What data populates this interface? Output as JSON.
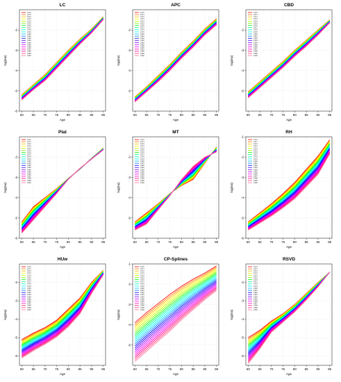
{
  "chart_data": {
    "type": "line",
    "series_names": [
      "1970",
      "1971",
      "1972",
      "1973",
      "1974",
      "1975",
      "1976",
      "1977",
      "1978",
      "1979",
      "1980",
      "1981",
      "1982",
      "1983",
      "1984",
      "1985",
      "1986",
      "1987",
      "1988",
      "1989",
      "1990"
    ],
    "series_colors": [
      "#ff0000",
      "#ff7f00",
      "#ffbf00",
      "#ffff00",
      "#bfff00",
      "#7fff00",
      "#00ff00",
      "#00ff7f",
      "#00ffbf",
      "#00ffff",
      "#00bfff",
      "#007fff",
      "#0000ff",
      "#3f00ff",
      "#7f00ff",
      "#bf00ff",
      "#ff00ff",
      "#ff00bf",
      "#ff007f",
      "#ff3f7f",
      "#ff6fa0"
    ],
    "x_ticks": [
      60,
      65,
      70,
      75,
      80,
      85,
      90,
      95
    ],
    "xlim": [
      59,
      96
    ],
    "panels": [
      {
        "title": "LC",
        "xlabel": "Age",
        "ylabel": "log(mx)",
        "ylim": [
          -6,
          -1
        ],
        "y_ticks": [
          -6,
          -5,
          -4,
          -3,
          -2
        ],
        "x": [
          60,
          65,
          70,
          75,
          80,
          85,
          90,
          95
        ],
        "series_first": [
          -5.2,
          -4.7,
          -4.2,
          -3.6,
          -3.0,
          -2.45,
          -1.95,
          -1.35
        ],
        "series_last": [
          -5.45,
          -4.95,
          -4.5,
          -3.9,
          -3.3,
          -2.7,
          -2.15,
          -1.5
        ]
      },
      {
        "title": "APC",
        "xlabel": "Age",
        "ylabel": "log(mx)",
        "ylim": [
          -6,
          -1
        ],
        "y_ticks": [
          -5,
          -4,
          -3,
          -2
        ],
        "x": [
          60,
          65,
          70,
          75,
          80,
          85,
          90,
          95
        ],
        "series_first": [
          -5.3,
          -4.8,
          -4.25,
          -3.7,
          -3.1,
          -2.55,
          -1.95,
          -1.45
        ],
        "series_last": [
          -5.55,
          -5.05,
          -4.55,
          -4.0,
          -3.4,
          -2.85,
          -2.25,
          -1.75
        ]
      },
      {
        "title": "CBD",
        "xlabel": "Age",
        "ylabel": "log(mx)",
        "ylim": [
          -6,
          -1
        ],
        "y_ticks": [
          -5,
          -4,
          -3,
          -2
        ],
        "x": [
          60,
          65,
          70,
          75,
          80,
          85,
          90,
          95
        ],
        "series_first": [
          -5.05,
          -4.55,
          -4.05,
          -3.55,
          -3.0,
          -2.5,
          -2.0,
          -1.5
        ],
        "series_last": [
          -5.35,
          -4.85,
          -4.35,
          -3.85,
          -3.3,
          -2.8,
          -2.25,
          -1.65
        ]
      },
      {
        "title": "Plat",
        "xlabel": "Age",
        "ylabel": "log(mx)",
        "ylim": [
          -6,
          -1
        ],
        "y_ticks": [
          -6,
          -5,
          -4,
          -3,
          -2
        ],
        "x": [
          60,
          65,
          70,
          75,
          80,
          85,
          90,
          95
        ],
        "series_first": [
          -5.2,
          -4.45,
          -4.0,
          -3.55,
          -3.05,
          -2.6,
          -2.05,
          -1.55
        ],
        "series_last": [
          -5.75,
          -5.1,
          -4.45,
          -3.8,
          -3.1,
          -2.55,
          -2.1,
          -1.65
        ]
      },
      {
        "title": "MT",
        "xlabel": "Age",
        "ylabel": "log(mx)",
        "ylim": [
          -6,
          -1
        ],
        "y_ticks": [
          -5,
          -4,
          -3,
          -2
        ],
        "x": [
          60,
          65,
          70,
          75,
          80,
          85,
          90,
          95
        ],
        "series_first": [
          -5.2,
          -4.75,
          -4.3,
          -3.8,
          -3.4,
          -3.1,
          -2.3,
          -1.5
        ],
        "series_last": [
          -5.6,
          -5.3,
          -4.6,
          -3.9,
          -3.1,
          -2.45,
          -2.0,
          -1.75
        ]
      },
      {
        "title": "RH",
        "xlabel": "Age",
        "ylabel": "log(mx)",
        "ylim": [
          -6,
          -1
        ],
        "y_ticks": [
          -6,
          -5,
          -4,
          -3,
          -2,
          -1
        ],
        "x": [
          60,
          65,
          70,
          75,
          80,
          85,
          90,
          95
        ],
        "series_first": [
          -5.2,
          -4.75,
          -4.3,
          -3.8,
          -3.25,
          -2.6,
          -1.95,
          -1.15
        ],
        "series_last": [
          -5.6,
          -5.25,
          -4.9,
          -4.5,
          -4.05,
          -3.45,
          -2.85,
          -1.85
        ]
      },
      {
        "title": "HUw",
        "xlabel": "Age",
        "ylabel": "log(mx)",
        "ylim": [
          -6.5,
          -1
        ],
        "y_ticks": [
          -6,
          -5,
          -4,
          -3,
          -2
        ],
        "x": [
          60,
          65,
          70,
          75,
          80,
          85,
          90,
          95
        ],
        "series_first": [
          -5.1,
          -4.75,
          -4.45,
          -4.05,
          -3.45,
          -2.85,
          -2.0,
          -1.35
        ],
        "series_last": [
          -6.1,
          -5.7,
          -5.35,
          -4.95,
          -4.4,
          -3.7,
          -2.6,
          -1.6
        ]
      },
      {
        "title": "CP-Splines",
        "xlabel": "Age",
        "ylabel": "log(mx)",
        "ylim": [
          -6,
          -1
        ],
        "y_ticks": [
          -5,
          -4,
          -3,
          -2,
          -1
        ],
        "x": [
          60,
          65,
          70,
          75,
          80,
          85,
          90,
          95
        ],
        "series_first": [
          -3.9,
          -3.4,
          -2.95,
          -2.5,
          -2.1,
          -1.75,
          -1.45,
          -1.1
        ],
        "series_last": [
          -5.8,
          -5.3,
          -4.8,
          -4.3,
          -3.75,
          -3.25,
          -2.75,
          -2.3
        ]
      },
      {
        "title": "RSVD",
        "xlabel": "Age",
        "ylabel": "log(mx)",
        "ylim": [
          -6.5,
          -1
        ],
        "y_ticks": [
          -6,
          -5,
          -4,
          -3,
          -2
        ],
        "x": [
          60,
          65,
          70,
          75,
          80,
          85,
          90,
          95
        ],
        "series_first": [
          -5.0,
          -4.6,
          -4.1,
          -3.7,
          -3.2,
          -2.6,
          -2.0,
          -1.45
        ],
        "series_last": [
          -6.4,
          -5.6,
          -4.7,
          -4.15,
          -3.6,
          -2.95,
          -2.25,
          -1.45
        ]
      }
    ]
  }
}
